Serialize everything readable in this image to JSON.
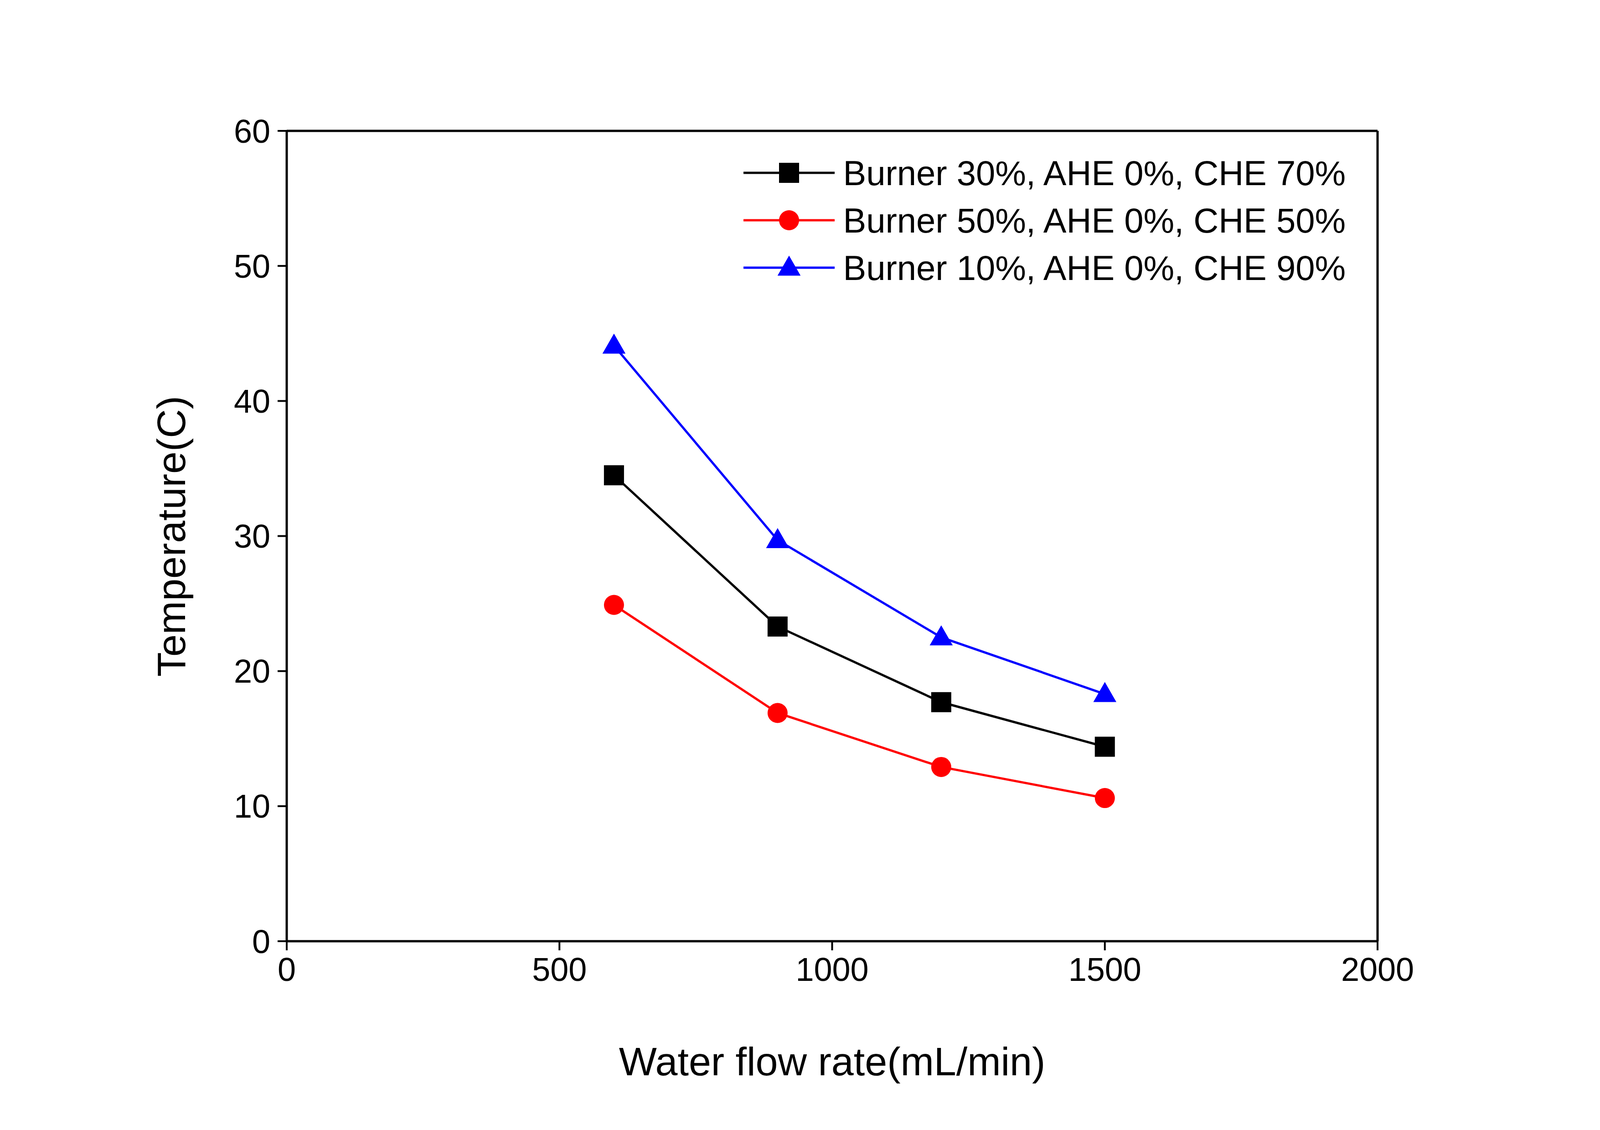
{
  "chart_data": {
    "type": "line",
    "x_label": "Water flow rate(mL/min)",
    "y_label": "Temperature(C)",
    "x": [
      600,
      900,
      1200,
      1500
    ],
    "xlim": [
      0,
      2000
    ],
    "xticks": [
      0,
      500,
      1000,
      1500,
      2000
    ],
    "ylim": [
      0,
      60
    ],
    "yticks": [
      0,
      10,
      20,
      30,
      40,
      50,
      60
    ],
    "grid": false,
    "legend": "upper right",
    "series": [
      {
        "name": "Burner 30%, AHE 0%, CHE 70%",
        "color": "#000000",
        "marker": "square",
        "values": [
          34.5,
          23.3,
          17.7,
          14.4
        ]
      },
      {
        "name": "Burner 50%, AHE 0%, CHE 50%",
        "color": "#ff0000",
        "marker": "circle",
        "values": [
          24.9,
          16.9,
          12.9,
          10.6
        ]
      },
      {
        "name": "Burner 10%, AHE 0%, CHE 90%",
        "color": "#0000ff",
        "marker": "triangle",
        "values": [
          44.1,
          29.7,
          22.5,
          18.3
        ]
      }
    ]
  }
}
